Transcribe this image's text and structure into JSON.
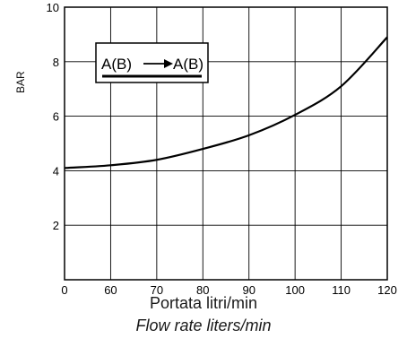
{
  "chart_data": {
    "type": "line",
    "ylabel": "BAR",
    "xlabel": "Portata litri/min",
    "xlabel_sub": "Flow rate liters/min",
    "x_ticks": [
      0,
      60,
      70,
      80,
      90,
      100,
      110,
      120
    ],
    "y_ticks": [
      2,
      4,
      6,
      8,
      10
    ],
    "ylim": [
      0,
      10
    ],
    "grid": true,
    "legend": {
      "from": "A(B)",
      "to": "A(B)",
      "placement": "top-left"
    },
    "series": [
      {
        "x": [
          0,
          60,
          70,
          80,
          90,
          100,
          110,
          120
        ],
        "values": [
          4.1,
          4.2,
          4.4,
          4.8,
          5.3,
          6.05,
          7.1,
          8.9
        ]
      }
    ]
  }
}
